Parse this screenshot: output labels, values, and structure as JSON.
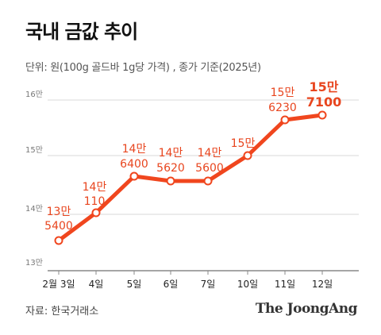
{
  "title": "국내 금값 추이",
  "unit_note": "단위: 원(100g 골드바 1g당 가격) , 종가 기준(2025년)",
  "source": "자료: 한국거래소",
  "logo": "The JoongAng",
  "colors": {
    "line": "#f0461e",
    "label": "#e8451e",
    "grid": "#d9d9d9",
    "axis": "#888888"
  },
  "chart_data": {
    "type": "line",
    "title": "국내 금값 추이",
    "xlabel": "",
    "ylabel": "",
    "categories": [
      "2월 3일",
      "4일",
      "5일",
      "6일",
      "7일",
      "10일",
      "11일",
      "12일"
    ],
    "values": [
      135400,
      140110,
      146400,
      145620,
      145600,
      150230,
      156230,
      157100
    ],
    "data_labels": [
      [
        "13만",
        "5400"
      ],
      [
        "14만",
        "110"
      ],
      [
        "14만",
        "6400"
      ],
      [
        "14만",
        "5620"
      ],
      [
        "14만",
        "5600"
      ],
      [
        "15만",
        "230"
      ],
      [
        "15만",
        "6230"
      ],
      [
        "15만",
        "7100"
      ]
    ],
    "y_ticks": [
      {
        "value": 130000,
        "label": "13만"
      },
      {
        "value": 140000,
        "label": "14만"
      },
      {
        "value": 150000,
        "label": "15만"
      },
      {
        "value": 160000,
        "label": "16만"
      }
    ],
    "ylim": [
      130000,
      160000
    ],
    "grid": true,
    "legend": "none"
  }
}
